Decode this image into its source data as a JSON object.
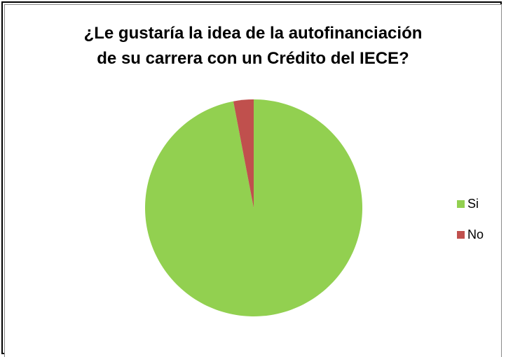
{
  "chart_data": {
    "type": "pie",
    "title_lines": [
      "¿Le gustaría la idea de la autofinanciación",
      "de su carrera con un Crédito del IECE?"
    ],
    "categories": [
      "Si",
      "No"
    ],
    "values": [
      97,
      3
    ],
    "colors": [
      "#92d050",
      "#c0504d"
    ],
    "legend_position": "right"
  }
}
